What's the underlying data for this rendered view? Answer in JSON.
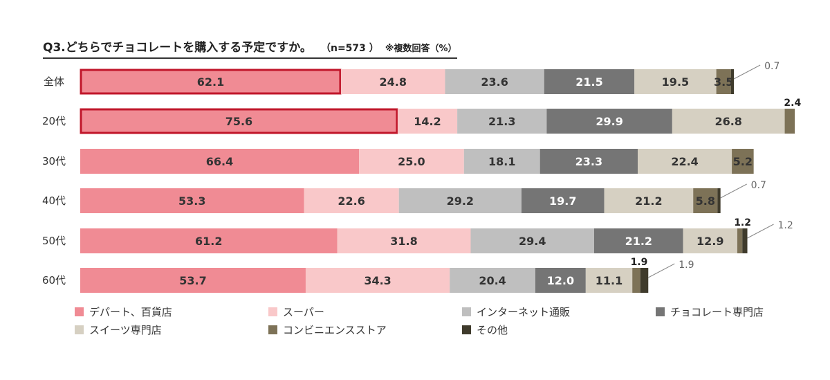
{
  "title": {
    "main": "Q3.どちらでチョコレートを購入する予定ですか。",
    "n": "（n=573 ）",
    "note": "※複数回答（%）"
  },
  "chart_data": {
    "type": "bar",
    "orientation": "horizontal",
    "stacked": true,
    "categories": [
      "全体",
      "20代",
      "30代",
      "40代",
      "50代",
      "60代"
    ],
    "series": [
      {
        "name": "デパート、百貨店",
        "color": "#f08b94",
        "values": [
          62.1,
          75.6,
          66.4,
          53.3,
          61.2,
          53.7
        ]
      },
      {
        "name": "スーパー",
        "color": "#f9c8c9",
        "values": [
          24.8,
          14.2,
          25.0,
          22.6,
          31.8,
          34.3
        ]
      },
      {
        "name": "インターネット通販",
        "color": "#bfbfbf",
        "values": [
          23.6,
          21.3,
          18.1,
          29.2,
          29.4,
          20.4
        ]
      },
      {
        "name": "チョコレート専門店",
        "color": "#757575",
        "values": [
          21.5,
          29.9,
          23.3,
          19.7,
          21.2,
          12.0
        ]
      },
      {
        "name": "スイーツ専門店",
        "color": "#d6d0c2",
        "values": [
          19.5,
          26.8,
          22.4,
          21.2,
          12.9,
          11.1
        ]
      },
      {
        "name": "コンビニエンスストア",
        "color": "#7d7257",
        "values": [
          3.5,
          2.4,
          5.2,
          5.8,
          1.2,
          1.9
        ]
      },
      {
        "name": "その他",
        "color": "#3f3b2c",
        "values": [
          0.7,
          0.0,
          0.0,
          0.7,
          1.2,
          1.9
        ]
      }
    ],
    "data_labels": [
      [
        "62.1",
        "24.8",
        "23.6",
        "21.5",
        "19.5",
        "3.5",
        "0.7"
      ],
      [
        "75.6",
        "14.2",
        "21.3",
        "29.9",
        "26.8",
        "2.4",
        ""
      ],
      [
        "66.4",
        "25.0",
        "18.1",
        "23.3",
        "22.4",
        "5.2",
        ""
      ],
      [
        "53.3",
        "22.6",
        "29.2",
        "19.7",
        "21.2",
        "5.8",
        "0.7"
      ],
      [
        "61.2",
        "31.8",
        "29.4",
        "21.2",
        "12.9",
        "1.2",
        "1.2"
      ],
      [
        "53.7",
        "34.3",
        "20.4",
        "12.0",
        "11.1",
        "1.9",
        "1.9"
      ]
    ],
    "highlighted": [
      {
        "category": "全体",
        "series": "デパート、百貨店"
      },
      {
        "category": "20代",
        "series": "デパート、百貨店"
      }
    ],
    "legend_position": "bottom",
    "grid": false
  }
}
